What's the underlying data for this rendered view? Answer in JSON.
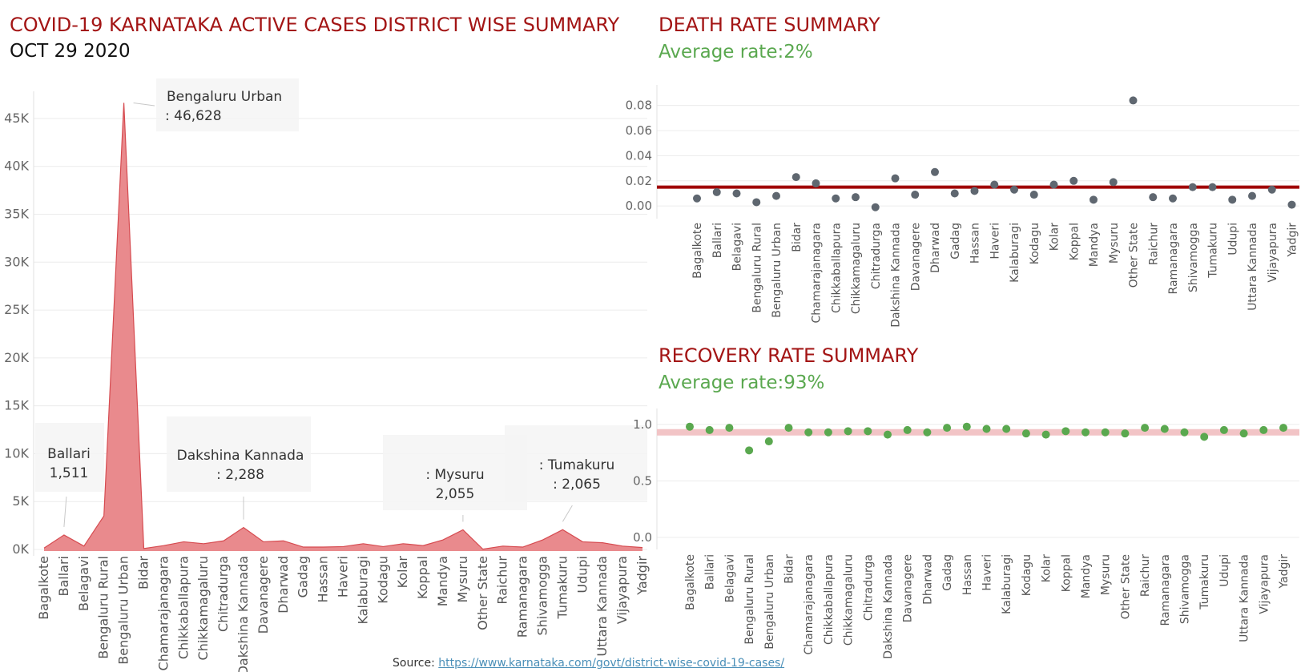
{
  "header": {
    "main_title": "COVID-19 KARNATAKA ACTIVE CASES DISTRICT WISE SUMMARY",
    "date": "OCT 29 2020",
    "death_title": "DEATH RATE SUMMARY",
    "death_subtitle": "Average rate:2%",
    "recovery_title": "RECOVERY RATE SUMMARY",
    "recovery_subtitle": "Average rate:93%"
  },
  "footer": {
    "source_label": "Source:",
    "source_link": "https://www.karnataka.com/govt/district-wise-covid-19-cases/"
  },
  "colors": {
    "title": "#a31515",
    "area_fill": "#e98a8d",
    "area_stroke": "#d64b50",
    "death_dot": "#5f6770",
    "death_line": "#a00000",
    "recovery_dot": "#5aa84f",
    "recovery_band": "#f2c4c6",
    "gridline": "#ececec"
  },
  "chart_data": [
    {
      "type": "area",
      "title": "COVID-19 KARNATAKA ACTIVE CASES DISTRICT WISE SUMMARY",
      "subtitle": "OCT 29 2020",
      "xlabel": "",
      "ylabel": "",
      "ylim": [
        0,
        47000
      ],
      "yticks": [
        0,
        5000,
        10000,
        15000,
        20000,
        25000,
        30000,
        35000,
        40000,
        45000
      ],
      "ytick_labels": [
        "0K",
        "5K",
        "10K",
        "15K",
        "20K",
        "25K",
        "30K",
        "35K",
        "40K",
        "45K"
      ],
      "grid": true,
      "categories": [
        "Bagalkote",
        "Ballari",
        "Belagavi",
        "Bengaluru Rural",
        "Bengaluru Urban",
        "Bidar",
        "Chamarajanagara",
        "Chikkaballapura",
        "Chikkamagaluru",
        "Chitradurga",
        "Dakshina Kannada",
        "Davanagere",
        "Dharwad",
        "Gadag",
        "Hassan",
        "Haveri",
        "Kalaburagi",
        "Kodagu",
        "Kolar",
        "Koppal",
        "Mandya",
        "Mysuru",
        "Other State",
        "Raichur",
        "Ramanagara",
        "Shivamogga",
        "Tumakuru",
        "Udupi",
        "Uttara Kannada",
        "Vijayapura",
        "Yadgir"
      ],
      "values": [
        150,
        1511,
        350,
        3500,
        46628,
        100,
        400,
        800,
        600,
        900,
        2288,
        800,
        900,
        250,
        250,
        300,
        600,
        300,
        600,
        400,
        1000,
        2055,
        30,
        350,
        250,
        1000,
        2065,
        800,
        700,
        350,
        200
      ],
      "annotations": [
        {
          "category": "Bengaluru Urban",
          "name": "Bengaluru Urban",
          "value": "46,628"
        },
        {
          "category": "Ballari",
          "name": "Ballari",
          "value": "1,511"
        },
        {
          "category": "Dakshina Kannada",
          "name": "Dakshina Kannada",
          "value": "2,288"
        },
        {
          "category": "Mysuru",
          "name": "Mysuru",
          "value": "2,055"
        },
        {
          "category": "Tumakuru",
          "name": "Tumakuru",
          "value": "2,065"
        }
      ]
    },
    {
      "type": "scatter",
      "title": "DEATH RATE SUMMARY",
      "subtitle": "Average rate:2%",
      "ylim": [
        -0.005,
        0.09
      ],
      "yticks": [
        0,
        0.02,
        0.04,
        0.06,
        0.08
      ],
      "ytick_labels": [
        "0.00",
        "0.02",
        "0.04",
        "0.06",
        "0.08"
      ],
      "grid": true,
      "reference_line": 0.015,
      "categories": [
        "Bagalkote",
        "Ballari",
        "Belagavi",
        "Bengaluru Rural",
        "Bengaluru Urban",
        "Bidar",
        "Chamarajanagara",
        "Chikkaballapura",
        "Chikkamagaluru",
        "Chitradurga",
        "Dakshina Kannada",
        "Davanagere",
        "Dharwad",
        "Gadag",
        "Hassan",
        "Haveri",
        "Kalaburagi",
        "Kodagu",
        "Kolar",
        "Koppal",
        "Mandya",
        "Mysuru",
        "Other State",
        "Raichur",
        "Ramanagara",
        "Shivamogga",
        "Tumakuru",
        "Udupi",
        "Uttara Kannada",
        "Vijayapura",
        "Yadgir"
      ],
      "values": [
        0.006,
        0.011,
        0.01,
        0.003,
        0.008,
        0.023,
        0.018,
        0.006,
        0.007,
        -0.001,
        0.022,
        0.009,
        0.027,
        0.01,
        0.012,
        0.017,
        0.013,
        0.009,
        0.017,
        0.02,
        0.005,
        0.019,
        0.084,
        0.007,
        0.006,
        0.015,
        0.015,
        0.005,
        0.008,
        0.013,
        0.001
      ]
    },
    {
      "type": "scatter",
      "title": "RECOVERY RATE SUMMARY",
      "subtitle": "Average rate:93%",
      "ylim": [
        -0.05,
        1.07
      ],
      "yticks": [
        0,
        0.5,
        1.0
      ],
      "ytick_labels": [
        "0.0",
        "0.5",
        "1.0"
      ],
      "grid": true,
      "reference_line": 0.93,
      "categories": [
        "Bagalkote",
        "Ballari",
        "Belagavi",
        "Bengaluru Rural",
        "Bengaluru Urban",
        "Bidar",
        "Chamarajanagara",
        "Chikkaballapura",
        "Chikkamagaluru",
        "Chitradurga",
        "Dakshina Kannada",
        "Davanagere",
        "Dharwad",
        "Gadag",
        "Hassan",
        "Haveri",
        "Kalaburagi",
        "Kodagu",
        "Kolar",
        "Koppal",
        "Mandya",
        "Mysuru",
        "Other State",
        "Raichur",
        "Ramanagara",
        "Shivamogga",
        "Tumakuru",
        "Udupi",
        "Uttara Kannada",
        "Vijayapura",
        "Yadgir"
      ],
      "values": [
        0.98,
        0.95,
        0.97,
        0.77,
        0.85,
        0.97,
        0.93,
        0.93,
        0.94,
        0.94,
        0.91,
        0.95,
        0.93,
        0.97,
        0.98,
        0.96,
        0.96,
        0.92,
        0.91,
        0.94,
        0.93,
        0.93,
        0.92,
        0.97,
        0.96,
        0.93,
        0.89,
        0.95,
        0.92,
        0.95,
        0.97
      ]
    }
  ]
}
